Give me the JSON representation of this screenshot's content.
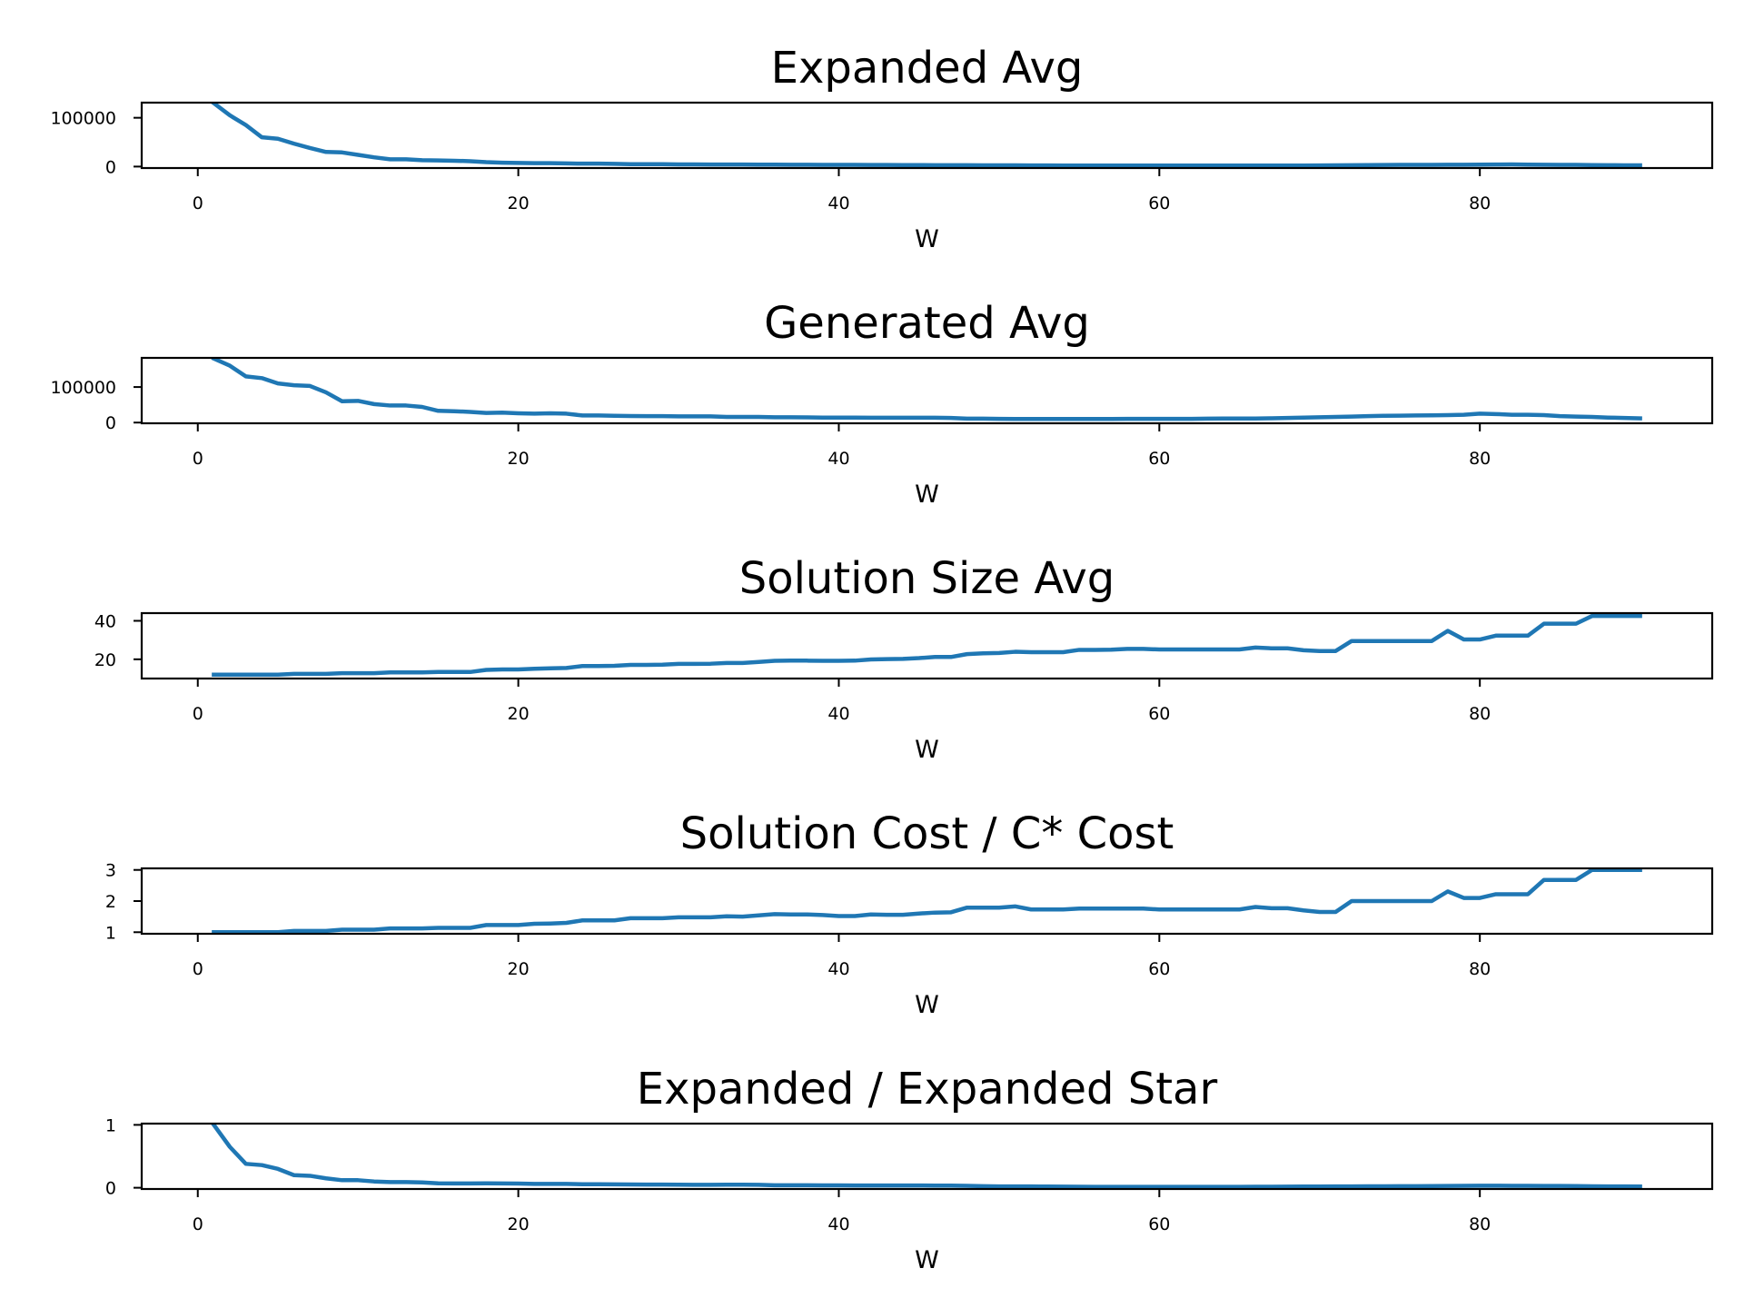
{
  "chart_data": [
    {
      "type": "line",
      "title": "Expanded Avg",
      "xlabel": "W",
      "ylabel": "",
      "xlim": [
        -3.5,
        94.5
      ],
      "ylim": [
        -3000,
        131000
      ],
      "xticks": [
        0,
        20,
        40,
        60,
        80
      ],
      "xtick_labels": [
        "0",
        "20",
        "40",
        "60",
        "80"
      ],
      "yticks": [
        0,
        100000
      ],
      "ytick_labels": [
        "0",
        "100000"
      ],
      "grid": false,
      "series": [
        {
          "color": "#1f77b4",
          "x": [
            1,
            2,
            3,
            4,
            5,
            6,
            7,
            8,
            9,
            10,
            11,
            12,
            13,
            14,
            15,
            16,
            17,
            18,
            19,
            20,
            21,
            22,
            23,
            24,
            25,
            26,
            27,
            28,
            29,
            30,
            31,
            32,
            33,
            34,
            35,
            36,
            37,
            38,
            39,
            40,
            41,
            42,
            43,
            44,
            45,
            46,
            47,
            48,
            49,
            50,
            51,
            52,
            53,
            54,
            55,
            56,
            57,
            58,
            59,
            60,
            61,
            62,
            63,
            64,
            65,
            66,
            67,
            68,
            69,
            70,
            71,
            72,
            73,
            74,
            75,
            76,
            77,
            78,
            79,
            80,
            81,
            82,
            83,
            84,
            85,
            86,
            87,
            88,
            89,
            90
          ],
          "y": [
            130000,
            105000,
            85000,
            60000,
            57000,
            47000,
            38000,
            30000,
            29000,
            24000,
            19000,
            15000,
            15000,
            13000,
            12500,
            12000,
            11000,
            9000,
            8000,
            7500,
            7000,
            7000,
            6500,
            6000,
            6000,
            5500,
            5000,
            5000,
            4800,
            4500,
            4500,
            4300,
            4300,
            4200,
            4000,
            3900,
            3800,
            3700,
            3600,
            3500,
            3400,
            3300,
            3200,
            3100,
            3000,
            2900,
            2800,
            2800,
            2700,
            2600,
            2500,
            2400,
            2300,
            2200,
            2100,
            2000,
            2000,
            2000,
            2000,
            2000,
            2000,
            2000,
            2000,
            2000,
            2000,
            2000,
            2000,
            2100,
            2200,
            2400,
            2600,
            2800,
            3000,
            3200,
            3400,
            3500,
            3600,
            3700,
            3800,
            4000,
            4200,
            4400,
            4000,
            3800,
            3600,
            3400,
            3000,
            2800,
            2600,
            2500
          ]
        }
      ]
    },
    {
      "type": "line",
      "title": "Generated Avg",
      "xlabel": "W",
      "ylabel": "",
      "xlim": [
        -3.5,
        94.5
      ],
      "ylim": [
        -2000,
        182000
      ],
      "xticks": [
        0,
        20,
        40,
        60,
        80
      ],
      "xtick_labels": [
        "0",
        "20",
        "40",
        "60",
        "80"
      ],
      "yticks": [
        0,
        100000
      ],
      "ytick_labels": [
        "0",
        "100000"
      ],
      "grid": false,
      "series": [
        {
          "color": "#1f77b4",
          "x": [
            1,
            2,
            3,
            4,
            5,
            6,
            7,
            8,
            9,
            10,
            11,
            12,
            13,
            14,
            15,
            16,
            17,
            18,
            19,
            20,
            21,
            22,
            23,
            24,
            25,
            26,
            27,
            28,
            29,
            30,
            31,
            32,
            33,
            34,
            35,
            36,
            37,
            38,
            39,
            40,
            41,
            42,
            43,
            44,
            45,
            46,
            47,
            48,
            49,
            50,
            51,
            52,
            53,
            54,
            55,
            56,
            57,
            58,
            59,
            60,
            61,
            62,
            63,
            64,
            65,
            66,
            67,
            68,
            69,
            70,
            71,
            72,
            73,
            74,
            75,
            76,
            77,
            78,
            79,
            80,
            81,
            82,
            83,
            84,
            85,
            86,
            87,
            88,
            89,
            90
          ],
          "y": [
            180000,
            160000,
            130000,
            125000,
            110000,
            105000,
            103000,
            85000,
            60000,
            61000,
            52000,
            48000,
            48000,
            44000,
            33000,
            32000,
            30000,
            27000,
            28000,
            26000,
            25000,
            26000,
            25000,
            20000,
            20000,
            19000,
            18500,
            18000,
            18000,
            17500,
            17500,
            17500,
            16000,
            16000,
            16000,
            15000,
            15000,
            14500,
            14000,
            14000,
            14000,
            13500,
            13500,
            13500,
            13500,
            13500,
            13000,
            11000,
            11000,
            10500,
            10000,
            10000,
            10000,
            10000,
            10000,
            10000,
            10000,
            10500,
            10500,
            10500,
            10500,
            10500,
            11000,
            11500,
            11500,
            11500,
            12000,
            13000,
            14000,
            15000,
            16000,
            17000,
            18000,
            19000,
            19500,
            20000,
            20500,
            21000,
            22000,
            25000,
            24000,
            22000,
            22000,
            21000,
            18000,
            17000,
            16000,
            14000,
            13000,
            12000
          ]
        }
      ]
    },
    {
      "type": "line",
      "title": "Solution Size Avg",
      "xlabel": "W",
      "ylabel": "",
      "xlim": [
        -3.5,
        94.5
      ],
      "ylim": [
        10,
        44
      ],
      "xticks": [
        0,
        20,
        40,
        60,
        80
      ],
      "xtick_labels": [
        "0",
        "20",
        "40",
        "60",
        "80"
      ],
      "yticks": [
        20,
        40
      ],
      "ytick_labels": [
        "20",
        "40"
      ],
      "grid": false,
      "series": [
        {
          "color": "#1f77b4",
          "x": [
            1,
            2,
            3,
            4,
            5,
            6,
            7,
            8,
            9,
            10,
            11,
            12,
            13,
            14,
            15,
            16,
            17,
            18,
            19,
            20,
            21,
            22,
            23,
            24,
            25,
            26,
            27,
            28,
            29,
            30,
            31,
            32,
            33,
            34,
            35,
            36,
            37,
            38,
            39,
            40,
            41,
            42,
            43,
            44,
            45,
            46,
            47,
            48,
            49,
            50,
            51,
            52,
            53,
            54,
            55,
            56,
            57,
            58,
            59,
            60,
            61,
            62,
            63,
            64,
            65,
            66,
            67,
            68,
            69,
            70,
            71,
            72,
            73,
            74,
            75,
            76,
            77,
            78,
            79,
            80,
            81,
            82,
            83,
            84,
            85,
            86,
            87,
            88,
            89,
            90
          ],
          "y": [
            12,
            12,
            12,
            12,
            12,
            12.4,
            12.4,
            12.4,
            12.8,
            12.8,
            12.8,
            13.2,
            13.2,
            13.2,
            13.4,
            13.4,
            13.4,
            14.5,
            14.7,
            14.7,
            15.1,
            15.3,
            15.5,
            16.5,
            16.5,
            16.6,
            17.1,
            17.1,
            17.2,
            17.6,
            17.6,
            17.7,
            18.1,
            18.1,
            18.6,
            19.2,
            19.3,
            19.3,
            19.2,
            19.2,
            19.3,
            19.9,
            20.1,
            20.2,
            20.6,
            21.2,
            21.2,
            22.7,
            23.1,
            23.3,
            23.9,
            23.7,
            23.7,
            23.7,
            24.9,
            24.9,
            25,
            25.4,
            25.4,
            25.1,
            25.1,
            25.1,
            25.1,
            25.1,
            25.1,
            26.1,
            25.7,
            25.7,
            24.7,
            24.3,
            24.3,
            29.5,
            29.5,
            29.5,
            29.5,
            29.5,
            29.5,
            34.8,
            30.3,
            30.3,
            32.3,
            32.3,
            32.3,
            38.5,
            38.5,
            38.5,
            42.5,
            42.5,
            42.5,
            42.5
          ]
        }
      ]
    },
    {
      "type": "line",
      "title": "Solution Cost / C* Cost",
      "xlabel": "W",
      "ylabel": "",
      "xlim": [
        -3.5,
        94.5
      ],
      "ylim": [
        0.95,
        3.05
      ],
      "xticks": [
        0,
        20,
        40,
        60,
        80
      ],
      "xtick_labels": [
        "0",
        "20",
        "40",
        "60",
        "80"
      ],
      "yticks": [
        1,
        2,
        3
      ],
      "ytick_labels": [
        "1",
        "2",
        "3"
      ],
      "grid": false,
      "series": [
        {
          "color": "#1f77b4",
          "x": [
            1,
            2,
            3,
            4,
            5,
            6,
            7,
            8,
            9,
            10,
            11,
            12,
            13,
            14,
            15,
            16,
            17,
            18,
            19,
            20,
            21,
            22,
            23,
            24,
            25,
            26,
            27,
            28,
            29,
            30,
            31,
            32,
            33,
            34,
            35,
            36,
            37,
            38,
            39,
            40,
            41,
            42,
            43,
            44,
            45,
            46,
            47,
            48,
            49,
            50,
            51,
            52,
            53,
            54,
            55,
            56,
            57,
            58,
            59,
            60,
            61,
            62,
            63,
            64,
            65,
            66,
            67,
            68,
            69,
            70,
            71,
            72,
            73,
            74,
            75,
            76,
            77,
            78,
            79,
            80,
            81,
            82,
            83,
            84,
            85,
            86,
            87,
            88,
            89,
            90
          ],
          "y": [
            1,
            1,
            1,
            1,
            1,
            1.04,
            1.04,
            1.04,
            1.08,
            1.08,
            1.08,
            1.12,
            1.12,
            1.12,
            1.14,
            1.14,
            1.14,
            1.23,
            1.23,
            1.23,
            1.27,
            1.28,
            1.3,
            1.38,
            1.38,
            1.38,
            1.45,
            1.45,
            1.45,
            1.48,
            1.48,
            1.48,
            1.51,
            1.5,
            1.54,
            1.58,
            1.57,
            1.57,
            1.55,
            1.52,
            1.52,
            1.57,
            1.56,
            1.56,
            1.6,
            1.63,
            1.64,
            1.79,
            1.79,
            1.79,
            1.83,
            1.73,
            1.73,
            1.73,
            1.76,
            1.76,
            1.76,
            1.76,
            1.76,
            1.73,
            1.73,
            1.73,
            1.73,
            1.73,
            1.73,
            1.81,
            1.77,
            1.77,
            1.7,
            1.65,
            1.65,
            2,
            2,
            2,
            2,
            2,
            2,
            2.31,
            2.1,
            2.1,
            2.22,
            2.22,
            2.22,
            2.68,
            2.68,
            2.68,
            3,
            3,
            3,
            3
          ]
        }
      ]
    },
    {
      "type": "line",
      "title": "Expanded / Expanded Star",
      "xlabel": "W",
      "ylabel": "",
      "xlim": [
        -3.5,
        94.5
      ],
      "ylim": [
        -0.02,
        1.02
      ],
      "xticks": [
        0,
        20,
        40,
        60,
        80
      ],
      "xtick_labels": [
        "0",
        "20",
        "40",
        "60",
        "80"
      ],
      "yticks": [
        0,
        1
      ],
      "ytick_labels": [
        "0",
        "1"
      ],
      "grid": false,
      "series": [
        {
          "color": "#1f77b4",
          "x": [
            1,
            2,
            3,
            4,
            5,
            6,
            7,
            8,
            9,
            10,
            11,
            12,
            13,
            14,
            15,
            16,
            17,
            18,
            19,
            20,
            21,
            22,
            23,
            24,
            25,
            26,
            27,
            28,
            29,
            30,
            31,
            32,
            33,
            34,
            35,
            36,
            37,
            38,
            39,
            40,
            41,
            42,
            43,
            44,
            45,
            46,
            47,
            48,
            49,
            50,
            51,
            52,
            53,
            54,
            55,
            56,
            57,
            58,
            59,
            60,
            61,
            62,
            63,
            64,
            65,
            66,
            67,
            68,
            69,
            70,
            71,
            72,
            73,
            74,
            75,
            76,
            77,
            78,
            79,
            80,
            81,
            82,
            83,
            84,
            85,
            86,
            87,
            88,
            89,
            90
          ],
          "y": [
            1,
            0.65,
            0.38,
            0.36,
            0.3,
            0.2,
            0.19,
            0.15,
            0.12,
            0.12,
            0.1,
            0.09,
            0.09,
            0.085,
            0.07,
            0.068,
            0.068,
            0.07,
            0.068,
            0.066,
            0.062,
            0.062,
            0.062,
            0.056,
            0.055,
            0.054,
            0.052,
            0.05,
            0.05,
            0.048,
            0.047,
            0.047,
            0.048,
            0.048,
            0.047,
            0.04,
            0.04,
            0.039,
            0.038,
            0.037,
            0.036,
            0.036,
            0.036,
            0.036,
            0.036,
            0.035,
            0.034,
            0.03,
            0.025,
            0.022,
            0.022,
            0.021,
            0.02,
            0.018,
            0.016,
            0.015,
            0.015,
            0.015,
            0.015,
            0.015,
            0.015,
            0.015,
            0.015,
            0.015,
            0.015,
            0.016,
            0.017,
            0.018,
            0.019,
            0.02,
            0.021,
            0.022,
            0.023,
            0.024,
            0.025,
            0.026,
            0.027,
            0.028,
            0.03,
            0.032,
            0.032,
            0.031,
            0.03,
            0.029,
            0.028,
            0.027,
            0.024,
            0.022,
            0.021,
            0.02
          ]
        }
      ]
    }
  ]
}
